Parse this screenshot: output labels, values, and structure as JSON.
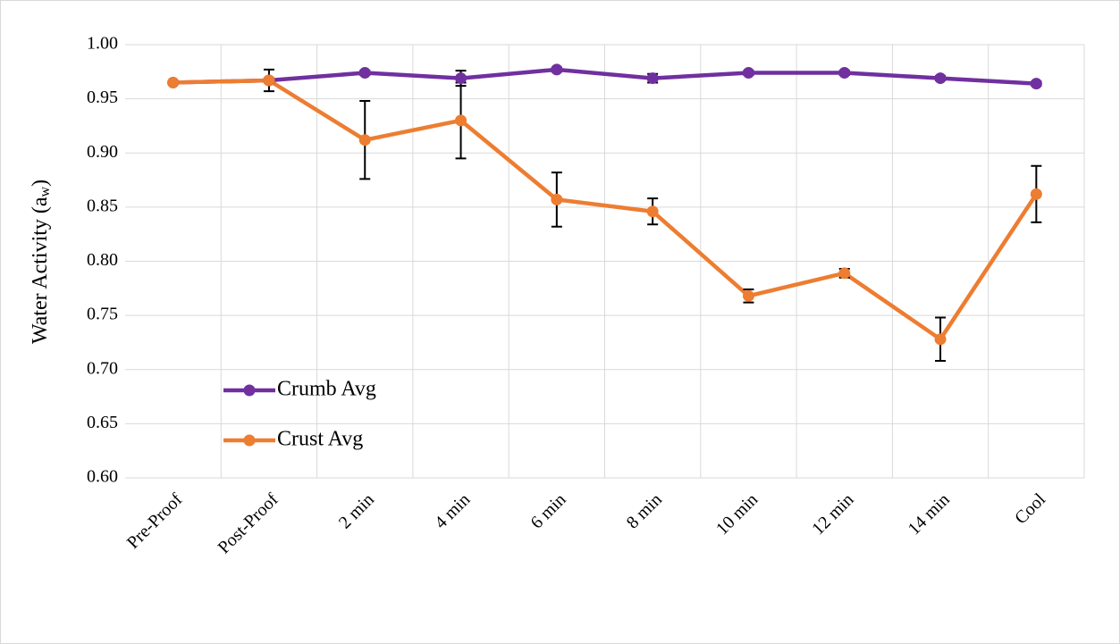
{
  "chart_data": {
    "type": "line",
    "y_label": {
      "text": "Water Activity (a",
      "subscript": "w",
      "suffix": ")"
    },
    "categories": [
      "Pre-Proof",
      "Post-Proof",
      "2 min",
      "4 min",
      "6 min",
      "8 min",
      "10 min",
      "12 min",
      "14 min",
      "Cool"
    ],
    "series": [
      {
        "name": "Crumb Avg",
        "color": "#7030a0",
        "values": [
          0.965,
          0.967,
          0.974,
          0.969,
          0.977,
          0.969,
          0.974,
          0.974,
          0.969,
          0.964
        ],
        "errors": [
          0.001,
          0.002,
          0.002,
          0.007,
          0.002,
          0.004,
          0.002,
          0.002,
          0.002,
          0.002
        ]
      },
      {
        "name": "Crust Avg",
        "color": "#ed7d31",
        "values": [
          0.965,
          0.967,
          0.912,
          0.93,
          0.857,
          0.846,
          0.768,
          0.789,
          0.728,
          0.862
        ],
        "errors": [
          0.001,
          0.01,
          0.036,
          0.035,
          0.025,
          0.012,
          0.006,
          0.004,
          0.02,
          0.026
        ]
      }
    ],
    "ylim": [
      0.6,
      1.0
    ],
    "yticks": [
      {
        "value": 0.6,
        "label": "0.60"
      },
      {
        "value": 0.65,
        "label": "0.65"
      },
      {
        "value": 0.7,
        "label": "0.70"
      },
      {
        "value": 0.75,
        "label": "0.75"
      },
      {
        "value": 0.8,
        "label": "0.80"
      },
      {
        "value": 0.85,
        "label": "0.85"
      },
      {
        "value": 0.9,
        "label": "0.90"
      },
      {
        "value": 0.95,
        "label": "0.95"
      },
      {
        "value": 1.0,
        "label": "1.00"
      }
    ],
    "grid": true,
    "legend": "lower left",
    "error_bar_color": "#000000"
  }
}
